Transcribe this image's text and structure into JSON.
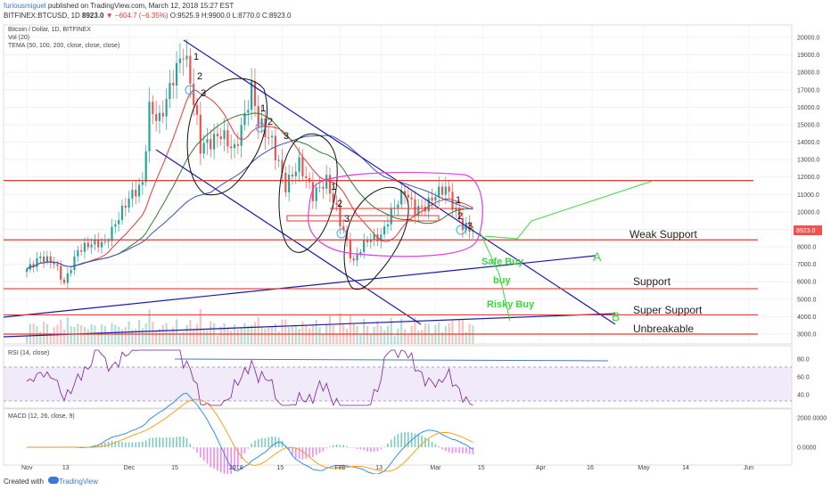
{
  "header": {
    "author": "furiousmiguel",
    "published": "published on TradingView.com, March 12, 2018 15:27 EST",
    "symbol_line": "BITFINEX:BTCUSD, 1D",
    "price": "8923.0",
    "change": "−604.7 (−6.35%)",
    "ohlc": "O:9525.9 H:9900.0 L:8770.0 C:8923.0"
  },
  "legend": {
    "title": "Bitcoin / Dollar, 1D, BITFINEX",
    "vol": "Vol (20)",
    "tema": "TEMA (50, 100, 200, close, close, close)",
    "rsi": "RSI (14, close)",
    "macd": "MACD (12, 26, close, 9)"
  },
  "footer": {
    "created_with": "Created with",
    "brand": "TradingView"
  },
  "colors": {
    "up": "#26a69a",
    "down": "#ef5350",
    "trend": "#1a1aa6",
    "level": "#e53935",
    "tema50": "#e53935",
    "tema100": "#2e7d32",
    "tema200": "#3f51b5",
    "annot": "#e040e0",
    "green": "#39d839",
    "rsi_band": "#e6dcf5"
  },
  "chart_data": [
    {
      "type": "candlestick",
      "title": "Bitcoin / Dollar, 1D, BITFINEX",
      "x_ticks": [
        "Nov",
        "13",
        "Dec",
        "15",
        "2018",
        "15",
        "Feb",
        "13",
        "Mar",
        "15",
        "Apr",
        "16",
        "May",
        "14",
        "Jun"
      ],
      "y_ticks": [
        20000.0,
        19000.0,
        18000.0,
        17000.0,
        16000.0,
        15000.0,
        14000.0,
        13000.0,
        12000.0,
        11000.0,
        10000.0,
        9000.0,
        8000.0,
        7000.0,
        6000.0,
        5000.0,
        4000.0,
        3000.0
      ],
      "ylim": [
        2500,
        21000
      ],
      "current_price_label": "8923.0",
      "close_path": [
        [
          "Nov 1",
          6700
        ],
        [
          "Nov 5",
          7400
        ],
        [
          "Nov 9",
          7100
        ],
        [
          "Nov 12",
          5900
        ],
        [
          "Nov 16",
          7800
        ],
        [
          "Nov 20",
          8200
        ],
        [
          "Nov 24",
          8200
        ],
        [
          "Nov 28",
          9700
        ],
        [
          "Dec 1",
          10800
        ],
        [
          "Dec 5",
          11600
        ],
        [
          "Dec 7",
          16000
        ],
        [
          "Dec 10",
          15200
        ],
        [
          "Dec 14",
          17700
        ],
        [
          "Dec 17",
          19200
        ],
        [
          "Dec 19",
          17600
        ],
        [
          "Dec 22",
          13800
        ],
        [
          "Dec 25",
          14000
        ],
        [
          "Dec 28",
          14500
        ],
        [
          "Jan 1",
          13500
        ],
        [
          "Jan 4",
          15500
        ],
        [
          "Jan 6",
          17100
        ],
        [
          "Jan 8",
          15200
        ],
        [
          "Jan 12",
          14000
        ],
        [
          "Jan 16",
          11500
        ],
        [
          "Jan 20",
          12800
        ],
        [
          "Jan 24",
          11000
        ],
        [
          "Jan 28",
          11800
        ],
        [
          "Feb 1",
          9500
        ],
        [
          "Feb 5",
          7000
        ],
        [
          "Feb 6",
          7600
        ],
        [
          "Feb 9",
          8400
        ],
        [
          "Feb 13",
          8600
        ],
        [
          "Feb 16",
          10000
        ],
        [
          "Feb 20",
          11200
        ],
        [
          "Feb 23",
          10100
        ],
        [
          "Feb 26",
          10300
        ],
        [
          "Mar 1",
          11000
        ],
        [
          "Mar 4",
          11400
        ],
        [
          "Mar 7",
          10000
        ],
        [
          "Mar 9",
          9200
        ],
        [
          "Mar 12",
          8923
        ]
      ],
      "annotations": [
        "1",
        "2",
        "3",
        "1",
        "2",
        "3",
        "1",
        "2",
        "3",
        "1",
        "2",
        "3"
      ]
    },
    {
      "type": "horizontal_levels",
      "levels": [
        {
          "label": "",
          "value": 11800
        },
        {
          "label": "Weak Support",
          "value": 8400
        },
        {
          "label": "Support",
          "value": 5600
        },
        {
          "label": "Super Support",
          "value": 4100
        },
        {
          "label": "Unbreakable",
          "value": 3000
        }
      ],
      "annotations": [
        "Safe Buy",
        "buy",
        "Risky Buy",
        "A",
        "B"
      ]
    },
    {
      "type": "line",
      "title": "RSI (14, close)",
      "y_ticks": [
        80.0,
        60.0,
        40.0
      ],
      "ylim": [
        25,
        95
      ],
      "band": [
        30,
        70
      ]
    },
    {
      "type": "line",
      "title": "MACD (12, 26, close, 9)",
      "y_ticks": [
        2000.0,
        0.0
      ],
      "ylim": [
        -1200,
        2600
      ]
    }
  ]
}
